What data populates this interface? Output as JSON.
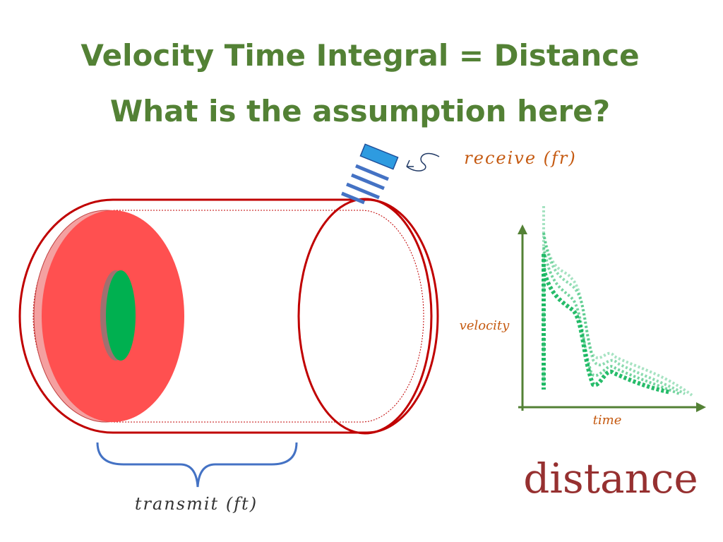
{
  "title": {
    "line1": "Velocity Time Integral = Distance",
    "line2": "What is the assumption here?"
  },
  "labels": {
    "receive": "receive (fr)",
    "transmit": "transmit (ft)",
    "velocity": "velocity",
    "time": "time",
    "distance": "distance"
  }
}
